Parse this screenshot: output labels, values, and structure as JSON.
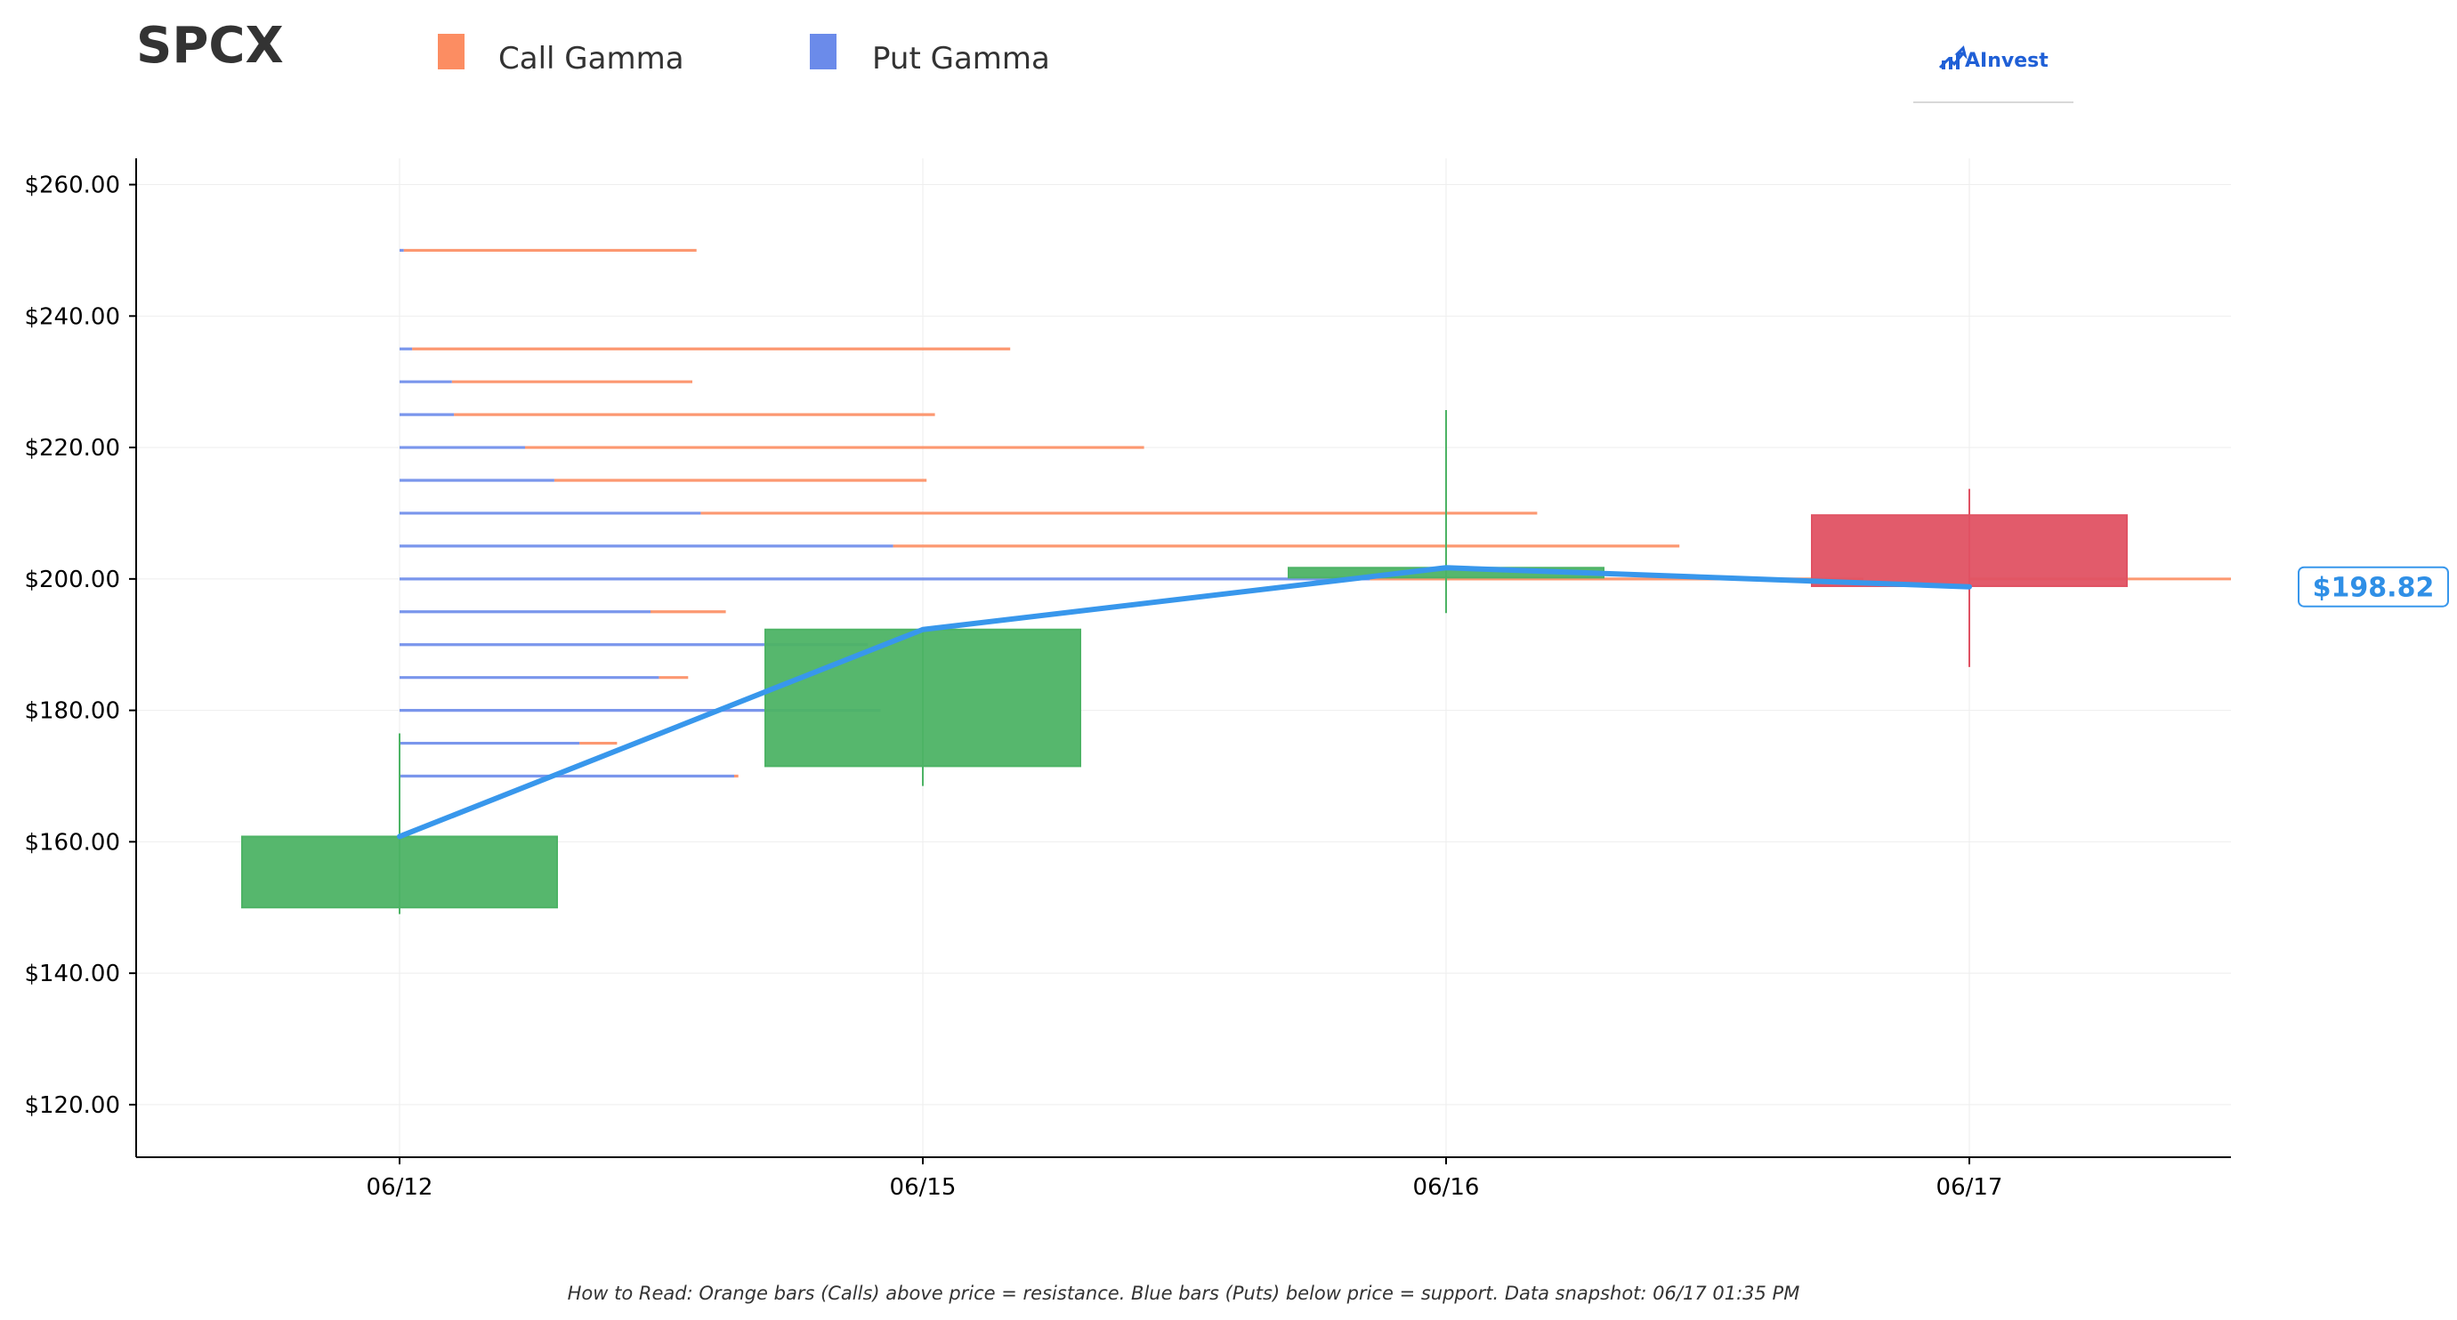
{
  "ticker": "SPCX",
  "brand": "AInvest",
  "footnote": "How to Read: Orange bars (Calls) above price = resistance. Blue bars (Puts) below price = support. Data snapshot: 06/17 01:35 PM",
  "colors": {
    "call": "#fc8d62",
    "put": "#6b8bea",
    "up_candle": "#4db365",
    "down_candle": "#e05263",
    "price_line": "#3897ec",
    "grid": "#eeeeee"
  },
  "chart_data": {
    "type": "candlestick",
    "legend": [
      {
        "label": "Call Gamma",
        "color": "#fc8d62"
      },
      {
        "label": "Put Gamma",
        "color": "#6b8bea"
      }
    ],
    "legend_position": "top",
    "grid": true,
    "categories": [
      "06/12",
      "06/15",
      "06/16",
      "06/17"
    ],
    "ylim": [
      112,
      264
    ],
    "yticks": [
      120,
      140,
      160,
      180,
      200,
      220,
      240,
      260
    ],
    "ytick_labels": [
      "$120.00",
      "$140.00",
      "$160.00",
      "$180.00",
      "$200.00",
      "$220.00",
      "$240.00",
      "$260.00"
    ],
    "candles": [
      {
        "date": "06/12",
        "open": 150,
        "high": 176.5,
        "low": 149,
        "close": 160.8
      },
      {
        "date": "06/15",
        "open": 171.5,
        "high": 192.5,
        "low": 168.5,
        "close": 192.3
      },
      {
        "date": "06/16",
        "open": 200.2,
        "high": 225.7,
        "low": 194.8,
        "close": 201.7
      },
      {
        "date": "06/17",
        "open": 209.7,
        "high": 213.7,
        "low": 186.6,
        "close": 198.9
      }
    ],
    "price_line": [
      {
        "date": "06/12",
        "value": 160.8
      },
      {
        "date": "06/15",
        "value": 192.3
      },
      {
        "date": "06/16",
        "value": 201.7
      },
      {
        "date": "06/17",
        "value": 198.8
      }
    ],
    "last_price_label": "$198.82",
    "gamma_levels": [
      {
        "strike": 250,
        "put": 0.01,
        "call": 0.7
      },
      {
        "strike": 235,
        "put": 0.03,
        "call": 1.43
      },
      {
        "strike": 230,
        "put": 0.125,
        "call": 0.575
      },
      {
        "strike": 225,
        "put": 0.13,
        "call": 1.15
      },
      {
        "strike": 220,
        "put": 0.3,
        "call": 1.48
      },
      {
        "strike": 215,
        "put": 0.37,
        "call": 0.89
      },
      {
        "strike": 210,
        "put": 0.72,
        "call": 2.0
      },
      {
        "strike": 205,
        "put": 1.18,
        "call": 1.88
      },
      {
        "strike": 200,
        "put": 2.32,
        "call": 1.18
      },
      {
        "strike": 195,
        "put": 0.6,
        "call": 0.18
      },
      {
        "strike": 190,
        "put": 1.12,
        "call": 0.0
      },
      {
        "strike": 185,
        "put": 0.62,
        "call": 0.07
      },
      {
        "strike": 180,
        "put": 1.15,
        "call": 0.0
      },
      {
        "strike": 175,
        "put": 0.43,
        "call": 0.09
      },
      {
        "strike": 170,
        "put": 0.8,
        "call": 0.01
      }
    ]
  }
}
